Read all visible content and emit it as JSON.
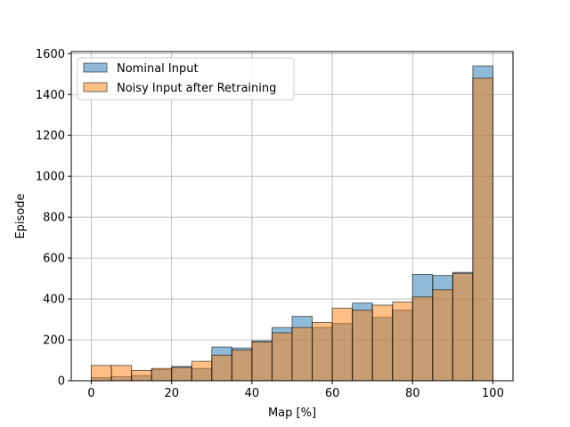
{
  "chart_data": {
    "type": "bar",
    "xlabel": "Map [%]",
    "ylabel": "Episode",
    "xlim": [
      -5,
      105
    ],
    "ylim": [
      0,
      1610
    ],
    "xticks": [
      0,
      20,
      40,
      60,
      80,
      100
    ],
    "yticks": [
      0,
      200,
      400,
      600,
      800,
      1000,
      1200,
      1400,
      1600
    ],
    "grid": true,
    "legend_position": "top-left",
    "bin_edges": [
      0,
      5,
      10,
      15,
      20,
      25,
      30,
      35,
      40,
      45,
      50,
      55,
      60,
      65,
      70,
      75,
      80,
      85,
      90,
      95,
      100
    ],
    "series": [
      {
        "name": "Nominal Input",
        "color": "#1f77b4",
        "values": [
          15,
          20,
          25,
          55,
          70,
          60,
          165,
          160,
          195,
          260,
          315,
          260,
          280,
          380,
          310,
          345,
          520,
          515,
          530,
          1540
        ]
      },
      {
        "name": "Noisy Input after Retraining",
        "color": "#ff7f0e",
        "values": [
          75,
          75,
          50,
          60,
          65,
          95,
          125,
          150,
          190,
          235,
          260,
          285,
          355,
          345,
          370,
          385,
          410,
          445,
          525,
          1480
        ]
      }
    ]
  }
}
